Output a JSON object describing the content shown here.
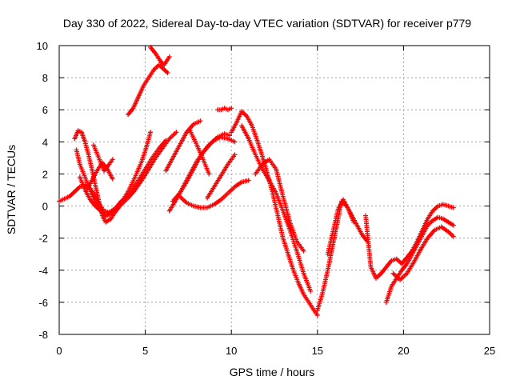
{
  "chart_data": {
    "type": "scatter",
    "title": "Day 330 of 2022, Sidereal Day-to-day VTEC variation (SDTVAR) for receiver p779",
    "xlabel": "GPS time / hours",
    "ylabel": "SDTVAR / TECUs",
    "xlim": [
      0,
      25
    ],
    "ylim": [
      -8,
      10
    ],
    "x_ticks": [
      "0",
      "5",
      "10",
      "15",
      "20",
      "25"
    ],
    "y_ticks": [
      "-8",
      "-6",
      "-4",
      "-2",
      "0",
      "2",
      "4",
      "6",
      "8",
      "10"
    ],
    "x_tick_values": [
      0,
      5,
      10,
      15,
      20,
      25
    ],
    "y_tick_values": [
      -8,
      -6,
      -4,
      -2,
      0,
      2,
      4,
      6,
      8,
      10
    ],
    "grid": true,
    "marker": "plus",
    "series": [
      {
        "color": "#ff0000",
        "x": [
          0.0,
          0.2,
          0.4,
          0.6,
          0.8,
          1.0,
          1.2,
          1.5,
          1.8,
          2.1,
          2.4,
          2.6,
          2.9,
          3.2,
          3.6,
          4.0,
          4.4,
          4.8,
          5.1,
          5.3
        ],
        "y": [
          0.3,
          0.4,
          0.5,
          0.6,
          0.8,
          1.0,
          1.2,
          1.3,
          1.1,
          0.6,
          0.0,
          -0.3,
          -0.4,
          -0.2,
          0.2,
          0.9,
          1.8,
          2.8,
          3.8,
          4.6
        ]
      },
      {
        "color": "#ff0000",
        "x": [
          0.9,
          1.1,
          1.3,
          1.5,
          1.7,
          1.9,
          2.1,
          2.3,
          2.5,
          2.7,
          3.0,
          3.3,
          3.6,
          4.0,
          4.4,
          4.8
        ],
        "y": [
          4.2,
          4.7,
          4.6,
          4.0,
          3.2,
          2.3,
          1.3,
          0.3,
          -0.6,
          -1.0,
          -0.8,
          -0.3,
          0.1,
          0.5,
          1.0,
          1.7
        ]
      },
      {
        "color": "#ff0000",
        "x": [
          1.0,
          1.2,
          1.5,
          1.8,
          2.1,
          2.4,
          2.7,
          3.0,
          3.4,
          3.8,
          4.2,
          4.6,
          5.0,
          5.4,
          5.8,
          6.2
        ],
        "y": [
          3.5,
          2.6,
          1.8,
          1.0,
          0.3,
          -0.2,
          -0.6,
          -0.5,
          -0.1,
          0.4,
          1.0,
          1.6,
          2.3,
          3.0,
          3.6,
          4.1
        ]
      },
      {
        "color": "#ff0000",
        "x": [
          1.2,
          1.5,
          1.8,
          2.1,
          2.4,
          2.7,
          3.0,
          3.3,
          3.6,
          4.0,
          4.4,
          4.8,
          5.2,
          5.6,
          6.0,
          6.4,
          6.8
        ],
        "y": [
          1.8,
          1.0,
          0.4,
          0.0,
          -0.3,
          -0.6,
          -0.4,
          -0.1,
          0.3,
          0.6,
          1.0,
          1.6,
          2.3,
          3.0,
          3.6,
          4.2,
          4.6
        ]
      },
      {
        "color": "#ff0000",
        "x": [
          1.6,
          1.9,
          2.2,
          2.5,
          2.8,
          3.1
        ],
        "y": [
          1.0,
          1.6,
          2.2,
          2.7,
          2.3,
          1.7
        ]
      },
      {
        "color": "#ff0000",
        "x": [
          2.0,
          2.3,
          2.6,
          2.9,
          3.1
        ],
        "y": [
          3.8,
          3.0,
          2.2,
          2.6,
          2.9
        ]
      },
      {
        "color": "#ff0000",
        "x": [
          4.0,
          4.3,
          4.6,
          4.9,
          5.2,
          5.5,
          5.8,
          6.1,
          6.3
        ],
        "y": [
          5.7,
          6.1,
          6.8,
          7.5,
          8.0,
          8.5,
          8.8,
          8.5,
          8.3
        ]
      },
      {
        "color": "#ff0000",
        "x": [
          5.3,
          5.6,
          5.9,
          6.1,
          6.4
        ],
        "y": [
          9.9,
          9.5,
          9.0,
          8.8,
          9.3
        ]
      },
      {
        "color": "#ff0000",
        "x": [
          6.2,
          6.6,
          7.0,
          7.4,
          7.8,
          8.2
        ],
        "y": [
          2.2,
          3.0,
          3.8,
          4.6,
          5.1,
          5.3
        ]
      },
      {
        "color": "#ff0000",
        "x": [
          6.4,
          6.8,
          7.2,
          7.6,
          8.0,
          8.4,
          8.8,
          9.2,
          9.6,
          9.9
        ],
        "y": [
          -0.3,
          0.4,
          1.2,
          2.0,
          2.8,
          3.4,
          3.9,
          4.3,
          4.5,
          4.4
        ]
      },
      {
        "color": "#ff0000",
        "x": [
          6.6,
          7.0,
          7.4,
          7.8,
          8.2,
          8.6,
          9.0,
          9.4,
          9.8,
          10.2
        ],
        "y": [
          0.3,
          0.8,
          1.5,
          2.3,
          3.1,
          3.7,
          4.1,
          4.3,
          4.2,
          4.0
        ]
      },
      {
        "color": "#ff0000",
        "x": [
          7.0,
          7.4,
          7.8,
          8.2,
          8.6,
          9.0,
          9.4,
          9.8,
          10.2,
          10.6,
          11.0
        ],
        "y": [
          0.6,
          0.2,
          0.0,
          -0.1,
          -0.1,
          0.1,
          0.4,
          0.8,
          1.2,
          1.5,
          1.6
        ]
      },
      {
        "color": "#ff0000",
        "x": [
          7.6,
          8.0,
          8.4,
          8.7
        ],
        "y": [
          4.7,
          3.8,
          2.8,
          2.0
        ]
      },
      {
        "color": "#ff0000",
        "x": [
          8.6,
          9.0,
          9.4,
          9.8,
          10.2
        ],
        "y": [
          0.5,
          1.2,
          1.9,
          2.6,
          3.2
        ]
      },
      {
        "color": "#ff0000",
        "x": [
          9.2,
          9.4,
          9.6,
          9.8,
          10.0
        ],
        "y": [
          6.0,
          6.0,
          6.1,
          6.0,
          6.1
        ]
      },
      {
        "color": "#ff0000",
        "x": [
          10.0,
          10.3,
          10.6,
          10.9,
          11.2,
          11.5,
          11.8,
          12.1,
          12.4,
          12.7,
          13.0,
          13.3,
          13.6,
          13.9,
          14.2,
          14.5,
          14.8,
          15.0
        ],
        "y": [
          4.6,
          5.2,
          5.9,
          5.6,
          5.0,
          4.1,
          3.1,
          2.0,
          0.8,
          -0.6,
          -2.0,
          -3.0,
          -4.0,
          -4.8,
          -5.5,
          -6.0,
          -6.5,
          -6.8
        ]
      },
      {
        "color": "#ff0000",
        "x": [
          10.6,
          11.0,
          11.4,
          11.8,
          12.2,
          12.6,
          13.0,
          13.4,
          13.8,
          14.2,
          14.6
        ],
        "y": [
          5.0,
          4.2,
          3.2,
          2.3,
          1.6,
          0.8,
          -0.3,
          -1.5,
          -2.8,
          -4.2,
          -5.3
        ]
      },
      {
        "color": "#ff0000",
        "x": [
          11.4,
          11.8,
          12.2,
          12.6,
          13.0,
          13.4,
          13.8,
          14.2
        ],
        "y": [
          2.0,
          2.6,
          2.9,
          2.3,
          0.6,
          -1.0,
          -2.2,
          -2.8
        ]
      },
      {
        "color": "#ff0000",
        "x": [
          15.0,
          15.3,
          15.6,
          15.9,
          16.2,
          16.4,
          16.7,
          17.0,
          17.3,
          17.6,
          17.9
        ],
        "y": [
          -6.5,
          -5.4,
          -4.0,
          -2.4,
          -0.8,
          0.3,
          0.0,
          -0.6,
          -1.2,
          -1.8,
          -2.2
        ]
      },
      {
        "color": "#ff0000",
        "x": [
          15.6,
          15.9,
          16.2,
          16.5,
          16.8,
          17.1
        ],
        "y": [
          -3.0,
          -1.6,
          -0.2,
          0.4,
          -0.2,
          -1.0
        ]
      },
      {
        "color": "#ff0000",
        "x": [
          17.8,
          18.1,
          18.4,
          18.7,
          19.0,
          19.3,
          19.6,
          19.9,
          20.2,
          20.5,
          20.8,
          21.1,
          21.4,
          21.7,
          22.0,
          22.3,
          22.6,
          22.9
        ],
        "y": [
          -0.6,
          -3.8,
          -4.5,
          -4.2,
          -3.8,
          -3.4,
          -3.3,
          -3.6,
          -3.2,
          -2.8,
          -2.2,
          -1.5,
          -0.8,
          -0.3,
          0.0,
          0.1,
          0.0,
          -0.1
        ]
      },
      {
        "color": "#ff0000",
        "x": [
          19.0,
          19.3,
          19.6,
          19.9,
          20.2,
          20.5,
          20.8,
          21.1,
          21.4,
          21.7,
          22.0,
          22.3,
          22.6,
          22.9
        ],
        "y": [
          -6.0,
          -5.0,
          -4.5,
          -4.0,
          -3.6,
          -3.0,
          -2.4,
          -1.8,
          -1.2,
          -0.9,
          -0.7,
          -0.8,
          -1.0,
          -1.2
        ]
      },
      {
        "color": "#ff0000",
        "x": [
          19.4,
          19.8,
          20.2,
          20.6,
          21.0,
          21.4,
          21.8,
          22.2,
          22.6,
          22.9
        ],
        "y": [
          -4.2,
          -4.6,
          -4.2,
          -3.5,
          -2.7,
          -2.0,
          -1.5,
          -1.3,
          -1.6,
          -1.9
        ]
      }
    ]
  }
}
